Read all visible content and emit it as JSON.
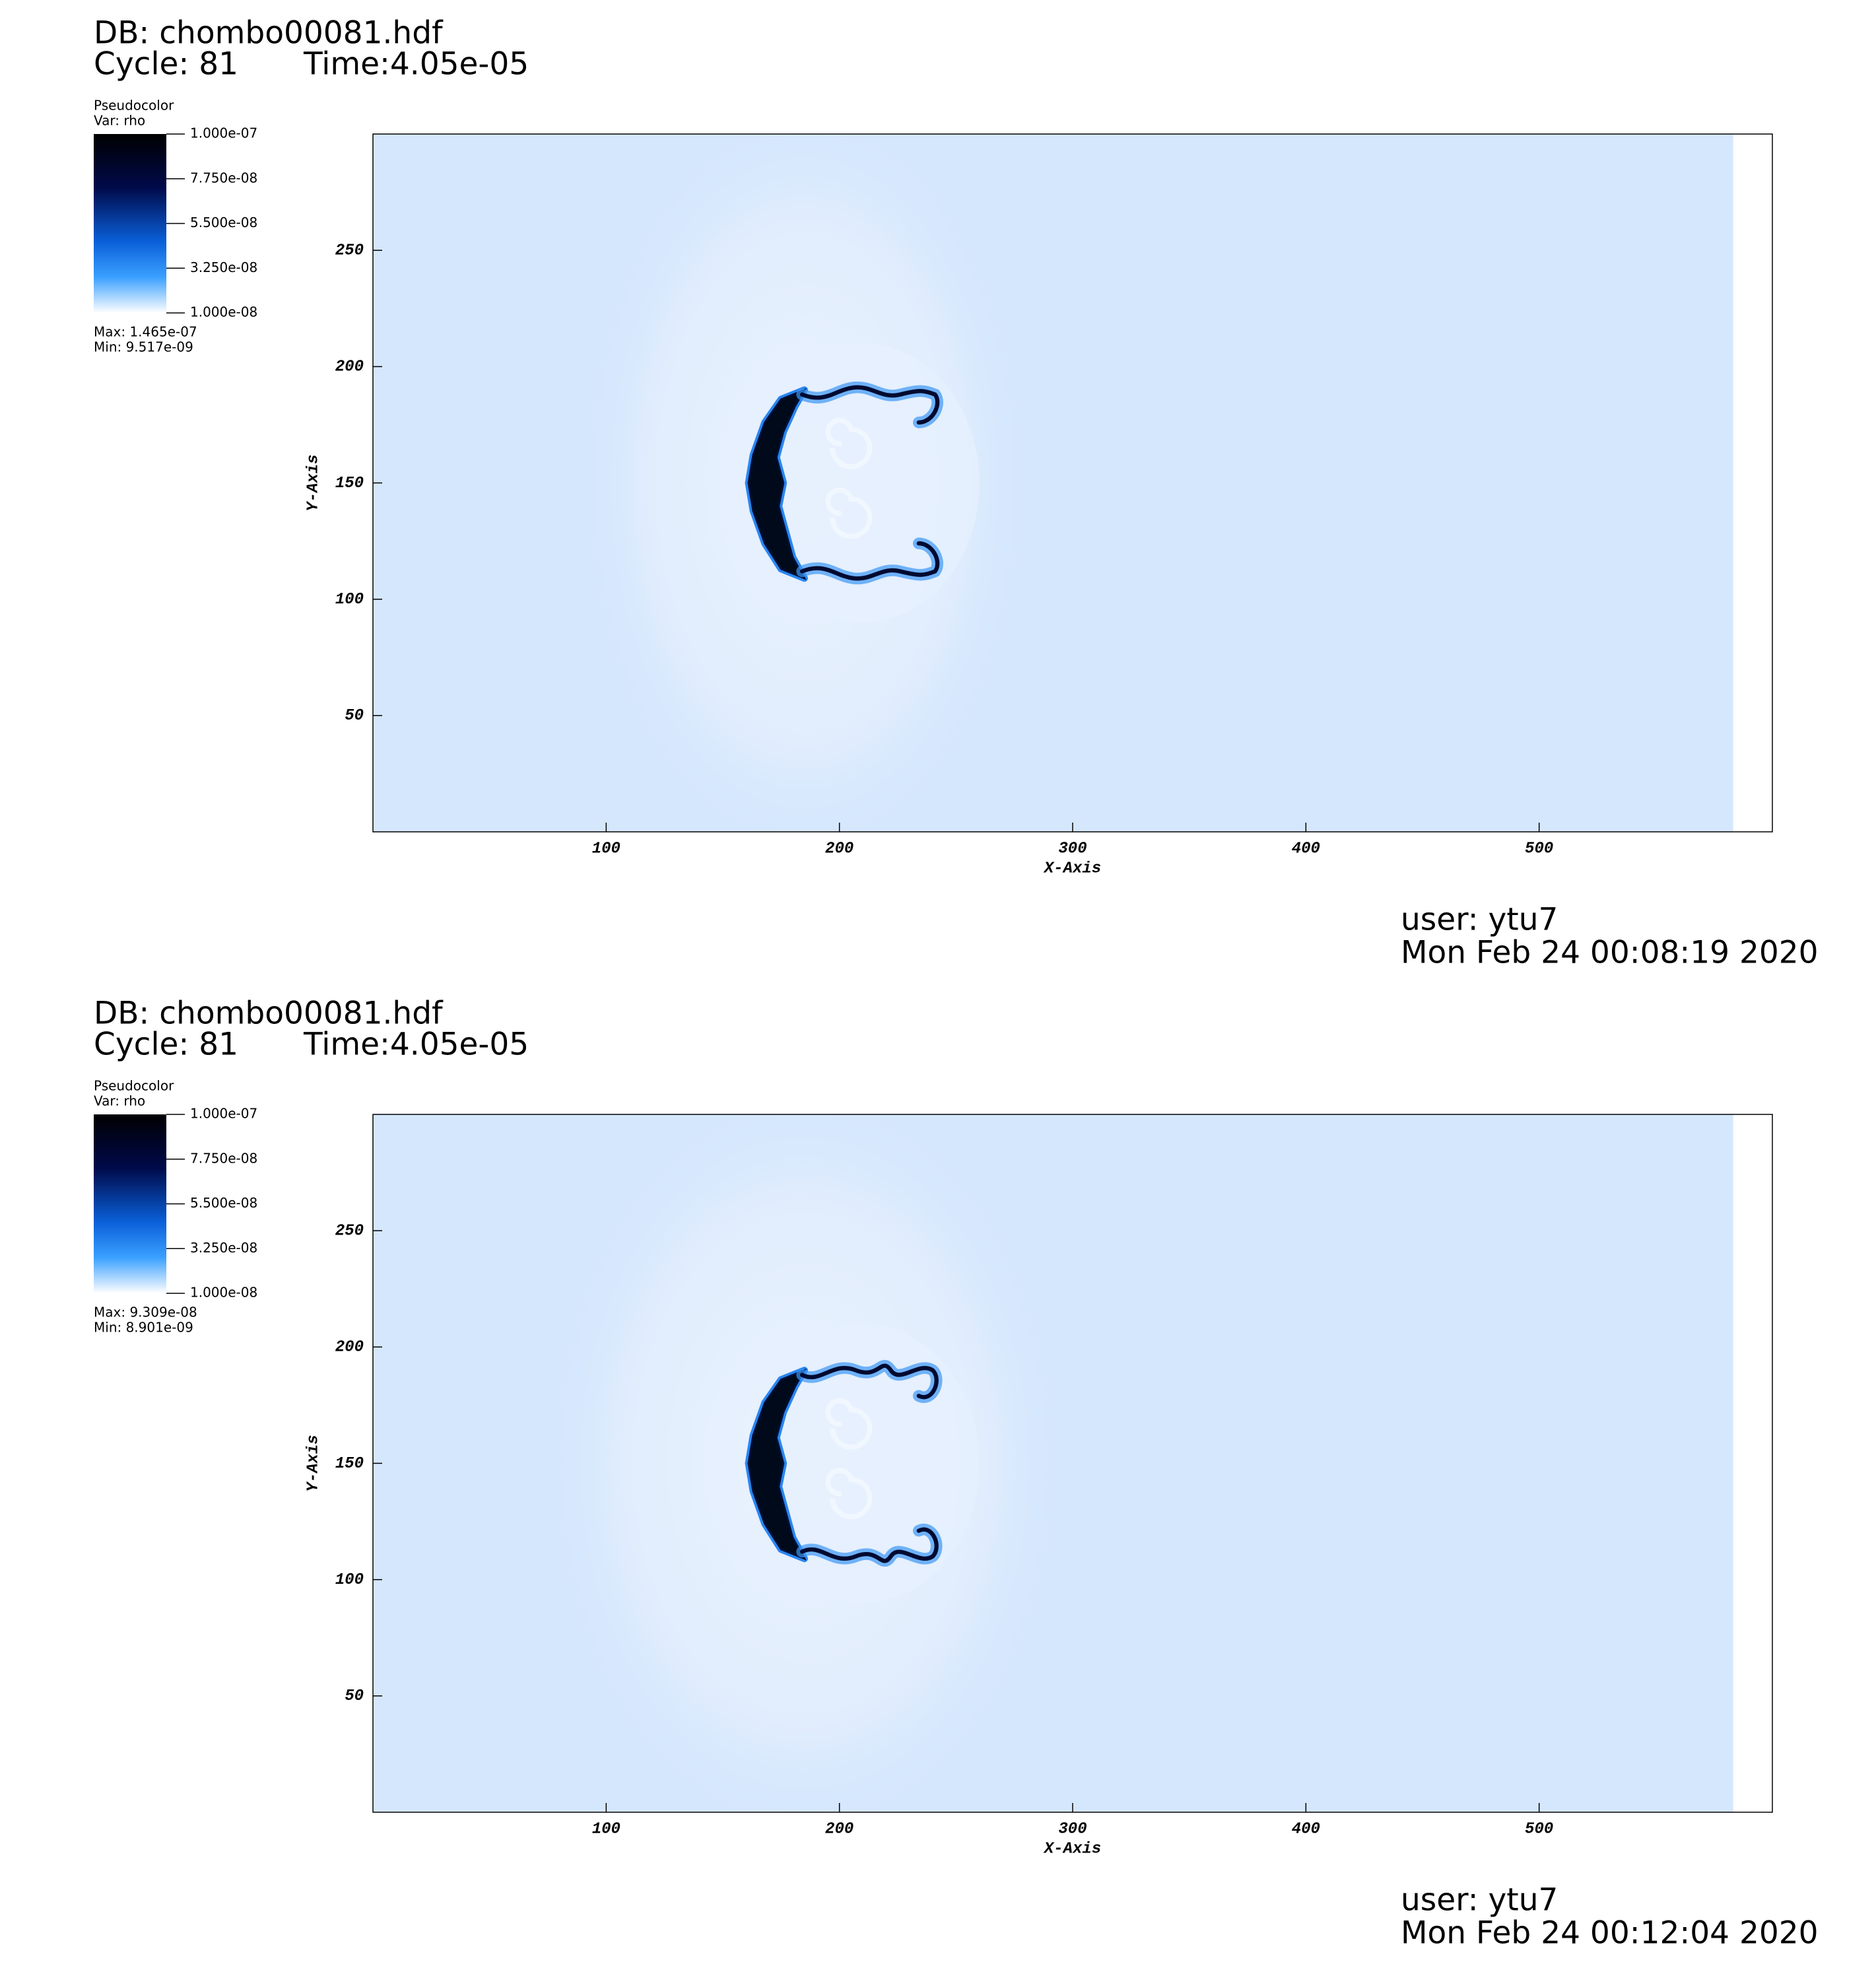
{
  "chart_data": [
    {
      "type": "heatmap",
      "title": "DB: chombo00081.hdf",
      "cycle": "Cycle: 81",
      "time": "Time:4.05e-05",
      "legend_title": "Pseudocolor",
      "variable": "Var: rho",
      "clim": [
        1e-08,
        1e-07
      ],
      "colorbar_ticks": [
        {
          "value": 1e-07,
          "label": "1.000e-07"
        },
        {
          "value": 7.75e-08,
          "label": "7.750e-08"
        },
        {
          "value": 5.5e-08,
          "label": "5.500e-08"
        },
        {
          "value": 3.25e-08,
          "label": "3.250e-08"
        },
        {
          "value": 1e-08,
          "label": "1.000e-08"
        }
      ],
      "max_label": "Max:  1.465e-07",
      "min_label": "Min:  9.517e-09",
      "xlabel": "X-Axis",
      "ylabel": "Y-Axis",
      "xlim": [
        0,
        600
      ],
      "ylim": [
        0,
        300
      ],
      "xticks": [
        100,
        200,
        300,
        400,
        500
      ],
      "yticks": [
        50,
        100,
        150,
        200,
        250
      ],
      "user": "user: ytu7",
      "timestamp": "Mon Feb 24 00:08:19 2020"
    },
    {
      "type": "heatmap",
      "title": "DB: chombo00081.hdf",
      "cycle": "Cycle: 81",
      "time": "Time:4.05e-05",
      "legend_title": "Pseudocolor",
      "variable": "Var: rho",
      "clim": [
        1e-08,
        1e-07
      ],
      "colorbar_ticks": [
        {
          "value": 1e-07,
          "label": "1.000e-07"
        },
        {
          "value": 7.75e-08,
          "label": "7.750e-08"
        },
        {
          "value": 5.5e-08,
          "label": "5.500e-08"
        },
        {
          "value": 3.25e-08,
          "label": "3.250e-08"
        },
        {
          "value": 1e-08,
          "label": "1.000e-08"
        }
      ],
      "max_label": "Max:  9.309e-08",
      "min_label": "Min:  8.901e-09",
      "xlabel": "X-Axis",
      "ylabel": "Y-Axis",
      "xlim": [
        0,
        600
      ],
      "ylim": [
        0,
        300
      ],
      "xticks": [
        100,
        200,
        300,
        400,
        500
      ],
      "yticks": [
        50,
        100,
        150,
        200,
        250
      ],
      "user": "user: ytu7",
      "timestamp": "Mon Feb 24 00:12:04 2020"
    }
  ]
}
